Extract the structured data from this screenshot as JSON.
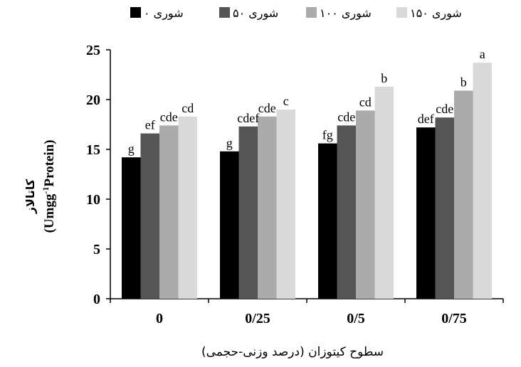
{
  "chart_data": {
    "type": "bar",
    "title": "",
    "xlabel": "سطوح کیتوزان (درصد وزنی-حجمی)",
    "ylabel": "کاتالاز",
    "ylabel_unit_prefix": "(Umgg",
    "ylabel_unit_sup": "-1",
    "ylabel_unit_suffix": "Protein)",
    "ylim": [
      0,
      25
    ],
    "yticks": [
      "0",
      "5",
      "10",
      "15",
      "20",
      "25"
    ],
    "grid": false,
    "legend_position": "top",
    "categories": [
      "0",
      "0/25",
      "0/5",
      "0/75"
    ],
    "series": [
      {
        "name": "شوری ۰",
        "color": "#000000",
        "values": [
          14.2,
          14.8,
          15.6,
          17.2
        ],
        "labels": [
          "g",
          "g",
          "fg",
          "def"
        ]
      },
      {
        "name": "شوری ۵۰",
        "color": "#555555",
        "values": [
          16.6,
          17.3,
          17.4,
          18.2
        ],
        "labels": [
          "ef",
          "cdef",
          "cde",
          "cde"
        ]
      },
      {
        "name": "شوری ۱۰۰",
        "color": "#ababab",
        "values": [
          17.4,
          18.3,
          18.9,
          20.9
        ],
        "labels": [
          "cde",
          "cde",
          "cd",
          "b"
        ]
      },
      {
        "name": "شوری ۱۵۰",
        "color": "#d9d9d9",
        "values": [
          18.3,
          19.0,
          21.3,
          23.7
        ],
        "labels": [
          "cd",
          "c",
          "b",
          "a"
        ]
      }
    ]
  }
}
